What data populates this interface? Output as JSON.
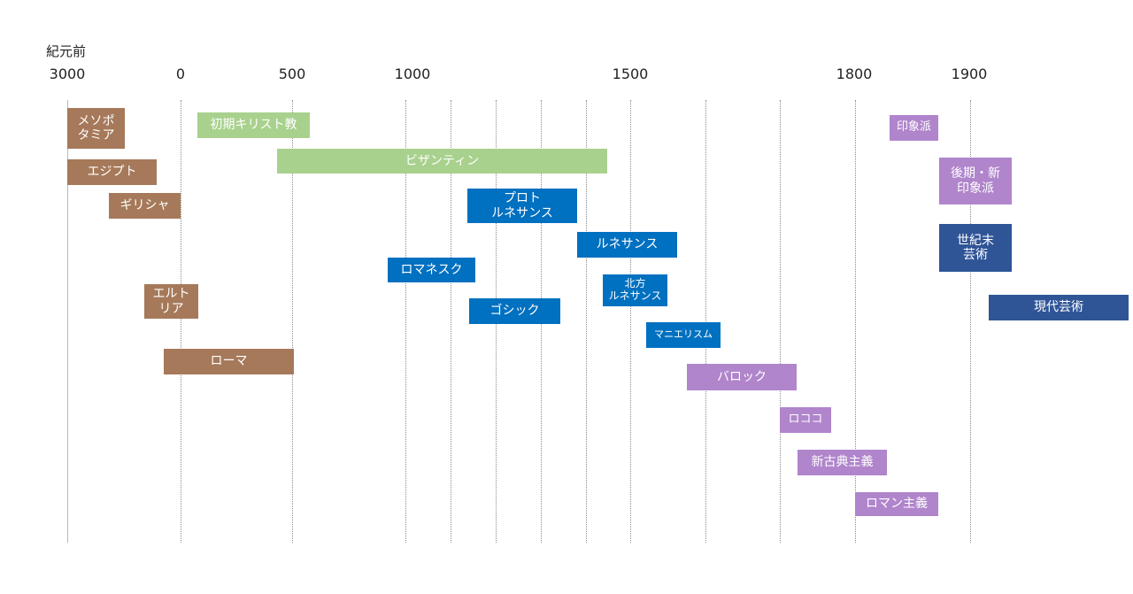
{
  "chart_data": {
    "type": "timeline",
    "era_caption": "紀元前",
    "axis_ticks": [
      "3000",
      "0",
      "500",
      "1000",
      "1500",
      "1800",
      "1900"
    ],
    "colors": {
      "ancient": "#a6795a",
      "early_christian": "#a9d18e",
      "medieval_renaissance": "#0070c0",
      "baroque_to_19c": "#b085cc",
      "modern": "#2f5597"
    },
    "periods": [
      {
        "label": "メソポ\nタミア",
        "group": "ancient"
      },
      {
        "label": "エジプト",
        "group": "ancient"
      },
      {
        "label": "ギリシャ",
        "group": "ancient"
      },
      {
        "label": "エルト\nリア",
        "group": "ancient"
      },
      {
        "label": "ローマ",
        "group": "ancient"
      },
      {
        "label": "初期キリスト教",
        "group": "early_christian"
      },
      {
        "label": "ビザンティン",
        "group": "early_christian"
      },
      {
        "label": "プロト\nルネサンス",
        "group": "medieval_renaissance"
      },
      {
        "label": "ロマネスク",
        "group": "medieval_renaissance"
      },
      {
        "label": "ゴシック",
        "group": "medieval_renaissance"
      },
      {
        "label": "ルネサンス",
        "group": "medieval_renaissance"
      },
      {
        "label": "北方\nルネサンス",
        "group": "medieval_renaissance"
      },
      {
        "label": "マニエリスム",
        "group": "medieval_renaissance"
      },
      {
        "label": "バロック",
        "group": "baroque_to_19c"
      },
      {
        "label": "ロココ",
        "group": "baroque_to_19c"
      },
      {
        "label": "新古典主義",
        "group": "baroque_to_19c"
      },
      {
        "label": "ロマン主義",
        "group": "baroque_to_19c"
      },
      {
        "label": "印象派",
        "group": "baroque_to_19c"
      },
      {
        "label": "後期・新\n印象派",
        "group": "baroque_to_19c"
      },
      {
        "label": "世紀末\n芸術",
        "group": "modern"
      },
      {
        "label": "現代芸術",
        "group": "modern"
      }
    ]
  }
}
